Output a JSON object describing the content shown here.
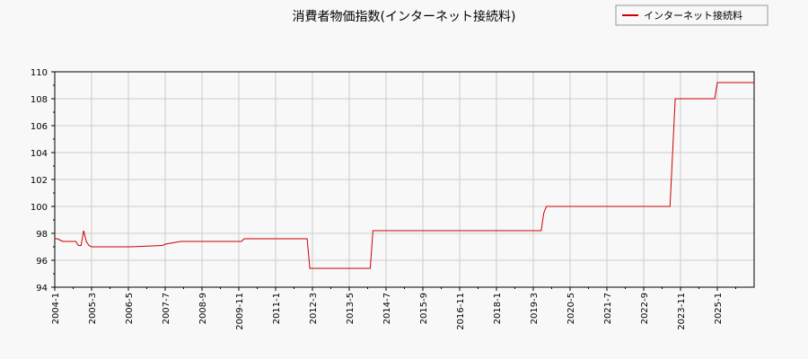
{
  "chart_data": {
    "type": "line",
    "title": "消費者物価指数(インターネット接続料)",
    "xlabel": "",
    "ylabel": "",
    "ylim": [
      94,
      110
    ],
    "yticks": [
      94,
      96,
      98,
      100,
      102,
      104,
      106,
      108,
      110
    ],
    "xlim": [
      "2004-01",
      "2026-03"
    ],
    "xticks": [
      "2004-1",
      "2005-3",
      "2006-5",
      "2007-7",
      "2008-9",
      "2009-11",
      "2011-1",
      "2012-3",
      "2013-5",
      "2014-7",
      "2015-9",
      "2016-11",
      "2018-1",
      "2019-3",
      "2020-5",
      "2021-7",
      "2022-9",
      "2023-11",
      "2025-1"
    ],
    "grid": true,
    "legend_position": "top-right",
    "series": [
      {
        "name": "インターネット接続料",
        "color": "#cc0000",
        "x": [
          "2004-01",
          "2004-02",
          "2004-03",
          "2004-04",
          "2004-05",
          "2004-06",
          "2004-07",
          "2004-08",
          "2004-09",
          "2004-10",
          "2004-11",
          "2004-12",
          "2005-01",
          "2005-02",
          "2005-03",
          "2005-04",
          "2006-05",
          "2006-06",
          "2007-06",
          "2007-07",
          "2008-01",
          "2009-12",
          "2010-01",
          "2011-12",
          "2012-01",
          "2012-02",
          "2013-12",
          "2014-01",
          "2014-02",
          "2019-06",
          "2019-07",
          "2019-08",
          "2023-07",
          "2023-08",
          "2023-09",
          "2024-11",
          "2024-12",
          "2025-01",
          "2026-03"
        ],
        "y": [
          97.6,
          97.6,
          97.5,
          97.4,
          97.4,
          97.4,
          97.4,
          97.4,
          97.4,
          97.1,
          97.1,
          98.2,
          97.4,
          97.1,
          97.0,
          97.0,
          97.0,
          97.0,
          97.1,
          97.2,
          97.4,
          97.4,
          97.6,
          97.6,
          97.6,
          95.4,
          95.4,
          95.4,
          98.2,
          98.2,
          99.5,
          100.0,
          100.0,
          104.0,
          108.0,
          108.0,
          108.0,
          109.2,
          109.2
        ]
      }
    ]
  }
}
